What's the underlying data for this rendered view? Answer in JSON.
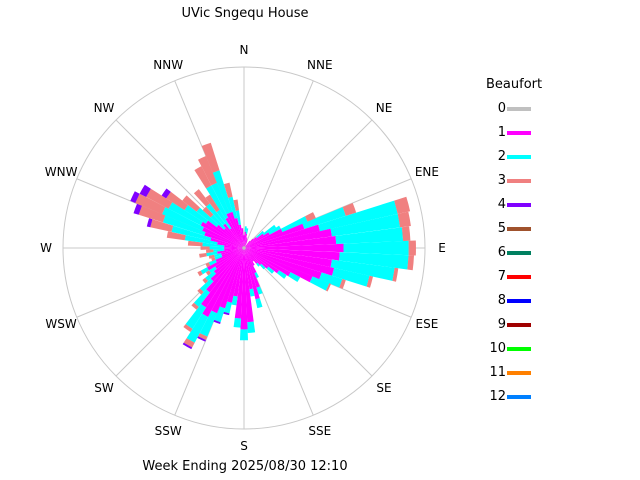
{
  "chart_data": {
    "type": "wind-rose",
    "title": "UVic Sngequ House",
    "footer": "Week Ending 2025/08/30 12:10",
    "directions": [
      "N",
      "NNE",
      "NE",
      "ENE",
      "E",
      "ESE",
      "SE",
      "SSE",
      "S",
      "SSW",
      "SW",
      "WSW",
      "W",
      "WNW",
      "NW",
      "NNW"
    ],
    "legend_title": "Beaufort",
    "legend": [
      {
        "label": "0",
        "color": "#c0c0c0"
      },
      {
        "label": "1",
        "color": "#ff00ff"
      },
      {
        "label": "2",
        "color": "#00ffff"
      },
      {
        "label": "3",
        "color": "#f08080"
      },
      {
        "label": "4",
        "color": "#8000ff"
      },
      {
        "label": "5",
        "color": "#a0522d"
      },
      {
        "label": "6",
        "color": "#008060"
      },
      {
        "label": "7",
        "color": "#ff0000"
      },
      {
        "label": "8",
        "color": "#0000ff"
      },
      {
        "label": "9",
        "color": "#a00000"
      },
      {
        "label": "10",
        "color": "#00ff00"
      },
      {
        "label": "11",
        "color": "#ff8000"
      },
      {
        "label": "12",
        "color": "#0080ff"
      }
    ],
    "legend_placement": "right",
    "sector_width_deg": 5,
    "max_radius_value": 100,
    "sectors": [
      {
        "bearing": 0,
        "s": [
          1,
          6
        ]
      },
      {
        "bearing": 5,
        "s": [
          1,
          8,
          3
        ]
      },
      {
        "bearing": 10,
        "s": [
          1,
          7,
          3
        ]
      },
      {
        "bearing": 15,
        "s": [
          1,
          5
        ]
      },
      {
        "bearing": 20,
        "s": [
          1,
          4
        ]
      },
      {
        "bearing": 25,
        "s": [
          1,
          3
        ]
      },
      {
        "bearing": 40,
        "s": [
          1,
          4
        ]
      },
      {
        "bearing": 45,
        "s": [
          1,
          6
        ]
      },
      {
        "bearing": 50,
        "s": [
          1,
          8,
          5
        ]
      },
      {
        "bearing": 55,
        "s": [
          1,
          12,
          8
        ]
      },
      {
        "bearing": 60,
        "s": [
          1,
          15,
          7
        ]
      },
      {
        "bearing": 65,
        "s": [
          1,
          22,
          15,
          5
        ]
      },
      {
        "bearing": 70,
        "s": [
          1,
          34,
          24,
          6
        ]
      },
      {
        "bearing": 75,
        "s": [
          1,
          42,
          44,
          7
        ]
      },
      {
        "bearing": 80,
        "s": [
          1,
          48,
          38,
          6
        ]
      },
      {
        "bearing": 85,
        "s": [
          1,
          50,
          37,
          4
        ]
      },
      {
        "bearing": 90,
        "s": [
          1,
          54,
          36,
          4
        ]
      },
      {
        "bearing": 95,
        "s": [
          1,
          52,
          38,
          3
        ]
      },
      {
        "bearing": 100,
        "s": [
          1,
          48,
          35,
          2
        ]
      },
      {
        "bearing": 105,
        "s": [
          1,
          50,
          20,
          2
        ]
      },
      {
        "bearing": 110,
        "s": [
          1,
          44,
          12,
          2
        ]
      },
      {
        "bearing": 115,
        "s": [
          1,
          40,
          10,
          1
        ]
      },
      {
        "bearing": 120,
        "s": [
          1,
          28,
          6
        ]
      },
      {
        "bearing": 125,
        "s": [
          1,
          22,
          5
        ]
      },
      {
        "bearing": 130,
        "s": [
          1,
          16,
          4
        ]
      },
      {
        "bearing": 135,
        "s": [
          1,
          12,
          3
        ]
      },
      {
        "bearing": 140,
        "s": [
          1,
          10,
          2
        ]
      },
      {
        "bearing": 145,
        "s": [
          1,
          8
        ]
      },
      {
        "bearing": 150,
        "s": [
          1,
          10
        ]
      },
      {
        "bearing": 155,
        "s": [
          1,
          14,
          3
        ]
      },
      {
        "bearing": 160,
        "s": [
          1,
          22,
          4
        ]
      },
      {
        "bearing": 165,
        "s": [
          1,
          28,
          5
        ]
      },
      {
        "bearing": 170,
        "s": [
          1,
          22,
          4
        ]
      },
      {
        "bearing": 175,
        "s": [
          1,
          40,
          6
        ]
      },
      {
        "bearing": 180,
        "s": [
          1,
          44,
          6
        ]
      },
      {
        "bearing": 185,
        "s": [
          1,
          38,
          5
        ]
      },
      {
        "bearing": 190,
        "s": [
          1,
          26,
          5
        ]
      },
      {
        "bearing": 195,
        "s": [
          1,
          30,
          6,
          0,
          1
        ]
      },
      {
        "bearing": 200,
        "s": [
          1,
          34,
          8,
          0,
          1
        ]
      },
      {
        "bearing": 205,
        "s": [
          1,
          38,
          14,
          2,
          1
        ]
      },
      {
        "bearing": 210,
        "s": [
          1,
          42,
          16,
          3,
          1
        ]
      },
      {
        "bearing": 215,
        "s": [
          1,
          38,
          14,
          2
        ]
      },
      {
        "bearing": 220,
        "s": [
          1,
          30,
          10,
          2
        ]
      },
      {
        "bearing": 225,
        "s": [
          1,
          24,
          8,
          2
        ]
      },
      {
        "bearing": 230,
        "s": [
          1,
          20,
          6,
          2
        ]
      },
      {
        "bearing": 235,
        "s": [
          1,
          18,
          4,
          2
        ]
      },
      {
        "bearing": 240,
        "s": [
          1,
          22,
          4,
          2
        ]
      },
      {
        "bearing": 245,
        "s": [
          1,
          16,
          4,
          2
        ]
      },
      {
        "bearing": 250,
        "s": [
          1,
          12,
          4,
          2
        ]
      },
      {
        "bearing": 255,
        "s": [
          1,
          12,
          4,
          3
        ]
      },
      {
        "bearing": 260,
        "s": [
          1,
          14,
          6,
          4
        ]
      },
      {
        "bearing": 265,
        "s": [
          1,
          10,
          6,
          4
        ]
      },
      {
        "bearing": 270,
        "s": [
          1,
          10,
          8,
          5
        ]
      },
      {
        "bearing": 275,
        "s": [
          1,
          10,
          12,
          8
        ]
      },
      {
        "bearing": 280,
        "s": [
          1,
          14,
          18,
          10
        ]
      },
      {
        "bearing": 285,
        "s": [
          1,
          18,
          22,
          12,
          2
        ]
      },
      {
        "bearing": 290,
        "s": [
          1,
          22,
          24,
          14,
          3
        ]
      },
      {
        "bearing": 295,
        "s": [
          1,
          24,
          24,
          16,
          3
        ]
      },
      {
        "bearing": 300,
        "s": [
          1,
          26,
          20,
          14,
          4
        ]
      },
      {
        "bearing": 305,
        "s": [
          1,
          24,
          14,
          12,
          3
        ]
      },
      {
        "bearing": 310,
        "s": [
          1,
          18,
          14,
          10
        ]
      },
      {
        "bearing": 315,
        "s": [
          1,
          14,
          10,
          6
        ]
      },
      {
        "bearing": 320,
        "s": [
          1,
          16,
          14,
          10
        ]
      },
      {
        "bearing": 325,
        "s": [
          1,
          12,
          12,
          10
        ]
      },
      {
        "bearing": 330,
        "s": [
          1,
          18,
          20,
          12
        ]
      },
      {
        "bearing": 335,
        "s": [
          1,
          20,
          18,
          16
        ]
      },
      {
        "bearing": 340,
        "s": [
          1,
          20,
          24,
          16
        ]
      },
      {
        "bearing": 345,
        "s": [
          1,
          16,
          12,
          8
        ]
      },
      {
        "bearing": 350,
        "s": [
          1,
          12,
          8,
          6
        ]
      },
      {
        "bearing": 355,
        "s": [
          1,
          10
        ]
      }
    ]
  }
}
